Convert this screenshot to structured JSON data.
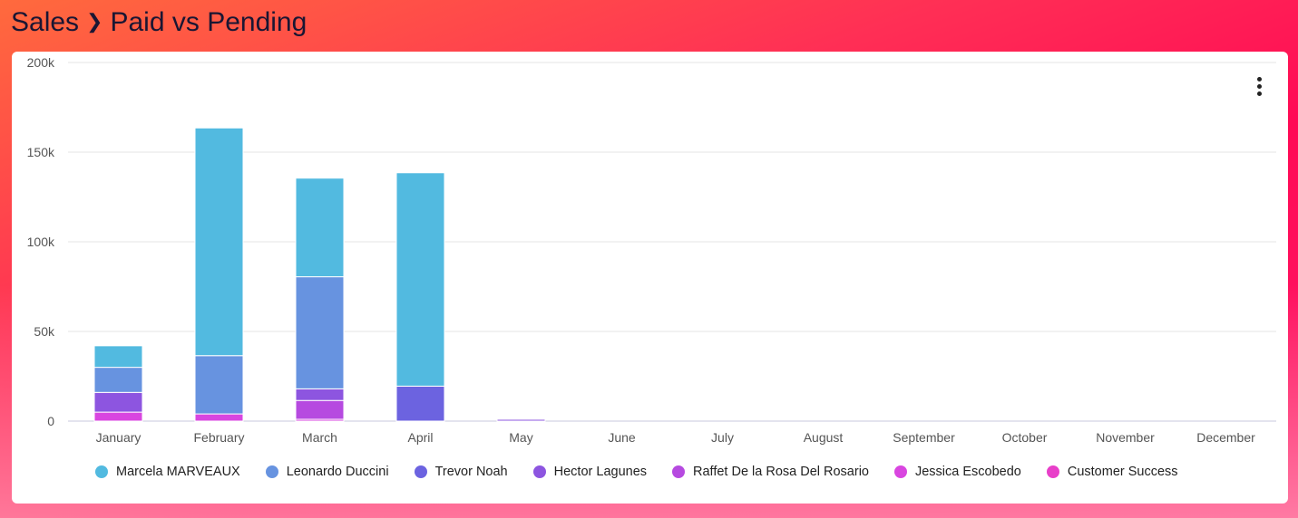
{
  "breadcrumb": {
    "parent": "Sales",
    "separator": "❯",
    "current": "Paid vs Pending"
  },
  "menu": {
    "icon": "kebab-menu-icon"
  },
  "chart_data": {
    "type": "bar",
    "stacked": true,
    "title": "",
    "xlabel": "",
    "ylabel": "",
    "ylim": [
      0,
      200000
    ],
    "yticks": [
      0,
      50000,
      100000,
      150000,
      200000
    ],
    "ytick_labels": [
      "0",
      "50k",
      "100k",
      "150k",
      "200k"
    ],
    "grid": true,
    "legend_position": "bottom",
    "categories": [
      "January",
      "February",
      "March",
      "April",
      "May",
      "June",
      "July",
      "August",
      "September",
      "October",
      "November",
      "December"
    ],
    "series": [
      {
        "name": "Customer Success",
        "color": "#e83fc9",
        "values": [
          0,
          0,
          0,
          0,
          0,
          0,
          0,
          0,
          0,
          0,
          0,
          0
        ]
      },
      {
        "name": "Jessica Escobedo",
        "color": "#d946e0",
        "values": [
          5000,
          4000,
          1000,
          0,
          0,
          0,
          0,
          0,
          0,
          0,
          0,
          0
        ]
      },
      {
        "name": "Raffet De la Rosa Del Rosario",
        "color": "#b64ae0",
        "values": [
          0,
          0,
          10500,
          0,
          0,
          0,
          0,
          0,
          0,
          0,
          0,
          0
        ]
      },
      {
        "name": "Hector Lagunes",
        "color": "#8d55e0",
        "values": [
          11000,
          0,
          6500,
          0,
          1000,
          0,
          0,
          0,
          0,
          0,
          0,
          0
        ]
      },
      {
        "name": "Trevor Noah",
        "color": "#6c63e0",
        "values": [
          0,
          0,
          0,
          19500,
          0,
          0,
          0,
          0,
          0,
          0,
          0,
          0
        ]
      },
      {
        "name": "Leonardo Duccini",
        "color": "#6793e0",
        "values": [
          14000,
          32500,
          62500,
          0,
          0,
          0,
          0,
          0,
          0,
          0,
          0,
          0
        ]
      },
      {
        "name": "Marcela MARVEAUX",
        "color": "#52bae0",
        "values": [
          12000,
          127000,
          55000,
          119000,
          0,
          0,
          0,
          0,
          0,
          0,
          0,
          0
        ]
      }
    ],
    "legend_order": [
      "Marcela MARVEAUX",
      "Leonardo Duccini",
      "Trevor Noah",
      "Hector Lagunes",
      "Raffet De la Rosa Del Rosario",
      "Jessica Escobedo",
      "Customer Success"
    ]
  }
}
